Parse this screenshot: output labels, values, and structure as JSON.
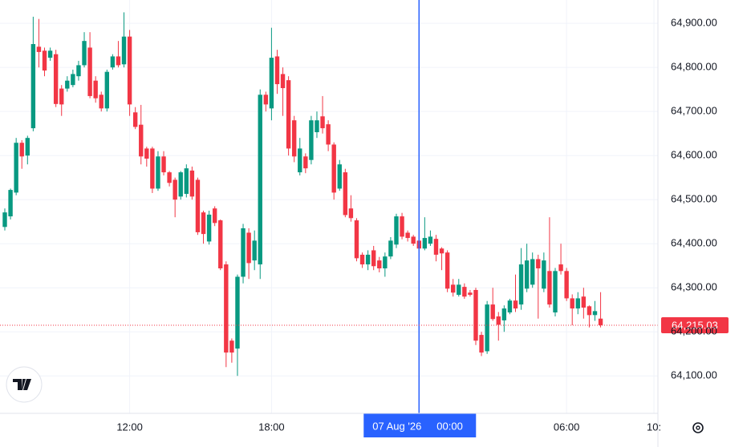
{
  "chart_data": {
    "type": "candlestick",
    "open": [
      64438,
      64462,
      64516,
      64629,
      64600,
      64662,
      64847,
      64838,
      64822,
      64830,
      64752,
      64752,
      64760,
      64780,
      64805,
      64845,
      64770,
      64738,
      64707,
      64800,
      64825,
      64807,
      64870,
      64698,
      64670,
      64616,
      64616,
      64525,
      64598,
      64562,
      64545,
      64507,
      64513,
      64566,
      64545,
      64471,
      64405,
      64480,
      64453,
      64353,
      64180,
      64162,
      64325,
      64425,
      64362,
      64353,
      64738,
      64707,
      64825,
      64785,
      64771,
      64680,
      64562,
      64598,
      64590,
      64653,
      64689,
      64671,
      64625,
      64525,
      64562,
      64480,
      64453,
      64375,
      64353,
      64385,
      64362,
      64344,
      64371,
      64398,
      64462,
      64425,
      64416,
      64407,
      64389,
      64400,
      64411,
      64389,
      64380,
      64307,
      64284,
      64302,
      64289,
      64295,
      64193,
      64156,
      64262,
      64235,
      64226,
      64244,
      64271,
      64262,
      64298,
      64307,
      64365,
      64298,
      64338,
      64244,
      64353,
      64338,
      64276,
      64253,
      64280,
      64258,
      64238,
      64230
    ],
    "high": [
      64480,
      64525,
      64640,
      64635,
      64645,
      64915,
      64910,
      64845,
      64845,
      64840,
      64760,
      64780,
      64795,
      64815,
      64880,
      64880,
      64780,
      64745,
      64795,
      64830,
      64860,
      64925,
      64885,
      64710,
      64715,
      64620,
      64620,
      64610,
      64610,
      64565,
      64550,
      64565,
      64580,
      64575,
      64550,
      64475,
      64475,
      64485,
      64455,
      64360,
      64185,
      64330,
      64445,
      64435,
      64430,
      64750,
      64745,
      64890,
      64840,
      64800,
      64780,
      64690,
      64640,
      64605,
      64690,
      64700,
      64735,
      64680,
      64630,
      64590,
      64570,
      64510,
      64458,
      64380,
      64385,
      64395,
      64370,
      64380,
      64415,
      64468,
      64470,
      64430,
      64420,
      64420,
      64460,
      64430,
      64420,
      64392,
      64385,
      64320,
      64320,
      64310,
      64295,
      64300,
      64200,
      64270,
      64300,
      64245,
      64260,
      64275,
      64330,
      64390,
      64400,
      64380,
      64375,
      64380,
      64460,
      64345,
      64400,
      64345,
      64285,
      64290,
      64300,
      64260,
      64270,
      64290
    ],
    "low": [
      64430,
      64455,
      64510,
      64570,
      64580,
      64655,
      64800,
      64780,
      64815,
      64710,
      64690,
      64745,
      64755,
      64770,
      64800,
      64730,
      64720,
      64700,
      64700,
      64795,
      64800,
      64800,
      64690,
      64660,
      64580,
      64575,
      64515,
      64520,
      64555,
      64530,
      64460,
      64500,
      64505,
      64500,
      64420,
      64400,
      64398,
      64440,
      64340,
      64120,
      64130,
      64100,
      64310,
      64320,
      64340,
      64320,
      64700,
      64680,
      64740,
      64690,
      64600,
      64585,
      64555,
      64560,
      64580,
      64640,
      64650,
      64610,
      64500,
      64520,
      64460,
      64450,
      64360,
      64345,
      64340,
      64340,
      64335,
      64325,
      64365,
      64390,
      64410,
      64405,
      64395,
      64380,
      64385,
      64395,
      64360,
      64340,
      64290,
      64280,
      64280,
      64275,
      64280,
      64170,
      64145,
      64150,
      64225,
      64180,
      64200,
      64240,
      64245,
      64250,
      64290,
      64300,
      64230,
      64290,
      64255,
      64235,
      64330,
      64270,
      64215,
      64240,
      64230,
      64210,
      64225,
      64210
    ],
    "close": [
      64471,
      64522,
      64629,
      64598,
      64640,
      64853,
      64835,
      64793,
      64838,
      64717,
      64716,
      64770,
      64785,
      64805,
      64860,
      64735,
      64730,
      64707,
      64790,
      64825,
      64805,
      64870,
      64716,
      64665,
      64598,
      64593,
      64525,
      64598,
      64562,
      64538,
      64500,
      64562,
      64571,
      64507,
      64426,
      64422,
      64466,
      64447,
      64344,
      64153,
      64153,
      64325,
      64435,
      64356,
      64407,
      64738,
      64716,
      64822,
      64762,
      64753,
      64616,
      64598,
      64616,
      64571,
      64680,
      64680,
      64662,
      64625,
      64516,
      64580,
      64465,
      64458,
      64367,
      64353,
      64375,
      64349,
      64344,
      64371,
      64407,
      64462,
      64416,
      64413,
      64400,
      64389,
      64413,
      64416,
      64375,
      64378,
      64298,
      64289,
      64307,
      64280,
      64284,
      64180,
      64153,
      64262,
      64229,
      64216,
      64253,
      64271,
      64253,
      64353,
      64362,
      64365,
      64344,
      64362,
      64262,
      64338,
      64338,
      64276,
      64253,
      64276,
      64255,
      64238,
      64247,
      64215.03
    ],
    "up_color": "#089981",
    "down_color": "#f23645",
    "xlim": [
      -0.85,
      115.1
    ],
    "xticks": [
      {
        "value": 22,
        "label": "12:00"
      },
      {
        "value": 47,
        "label": "18:00"
      },
      {
        "value": 99,
        "label": "06:00"
      },
      {
        "value": 114.4,
        "label": "10:"
      }
    ],
    "ylim": [
      64015,
      64953
    ],
    "yticks": [
      {
        "value": 64100,
        "label": "64,100.00"
      },
      {
        "value": 64200,
        "label": "64,200.00"
      },
      {
        "value": 64300,
        "label": "64,300.00"
      },
      {
        "value": 64400,
        "label": "64,400.00"
      },
      {
        "value": 64500,
        "label": "64,500.00"
      },
      {
        "value": 64600,
        "label": "64,600.00"
      },
      {
        "value": 64700,
        "label": "64,700.00"
      },
      {
        "value": 64800,
        "label": "64,800.00"
      },
      {
        "value": 64900,
        "label": "64,900.00"
      }
    ],
    "grid": true,
    "last_price": {
      "value": 64215.03,
      "label": "64,215.03"
    },
    "crosshair": {
      "value": 73,
      "date": "07 Aug '26",
      "time": "00:00"
    }
  }
}
